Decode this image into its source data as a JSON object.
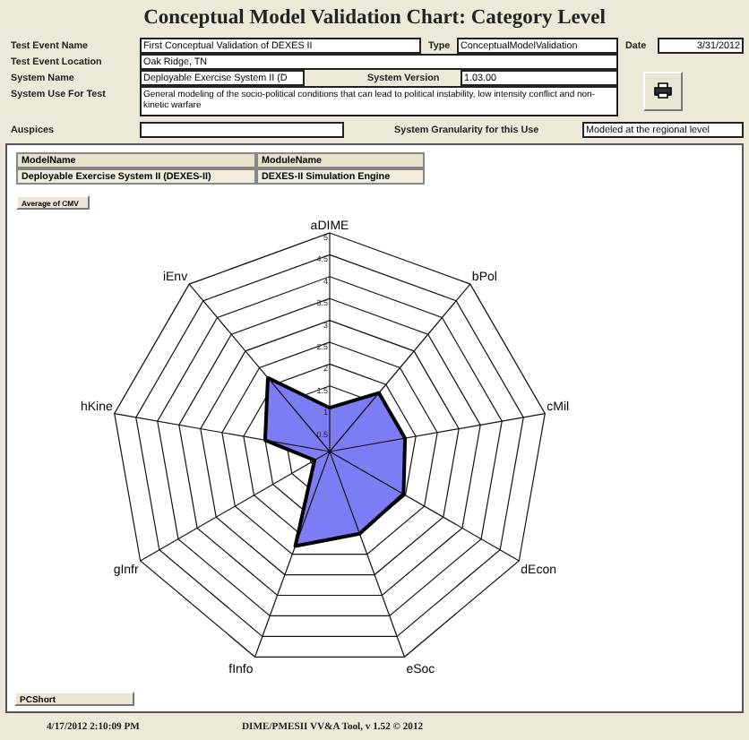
{
  "chart_data": {
    "type": "radar",
    "title": "Conceptual Model Validation Chart: Category Level",
    "categories": [
      "aDIME",
      "bPol",
      "cMil",
      "dEcon",
      "eSoc",
      "fInfo",
      "gInfr",
      "hKine",
      "iEnv"
    ],
    "series": [
      {
        "color": "#7c7cf4",
        "values": [
          1.0,
          1.75,
          1.75,
          1.95,
          2.0,
          2.3,
          0.4,
          1.5,
          2.2
        ]
      }
    ],
    "ylim": [
      0,
      5
    ],
    "yticks": [
      0.5,
      1,
      1.5,
      2,
      2.5,
      3,
      3.5,
      4,
      4.5,
      5
    ],
    "grid": true,
    "annotations": [
      "Test Event Name",
      "First Conceptual Validation of DEXES II",
      "Type",
      "ConceptualModelValidation",
      "Date",
      "3/31/2012",
      "Test Event Location",
      "Oak Ridge, TN",
      "System Name",
      "Deployable Exercise System II (D",
      "System Version",
      "1.03.00",
      "System Use For Test",
      "General modeling of the socio-political conditions that can lead to political instability, low intensity conflict and non-kinetic warfare",
      "Auspices",
      "System Granularity for this Use",
      "Modeled at the regional level",
      "ModelName",
      "ModuleName",
      "Deployable Exercise System II (DEXES-II)",
      "DEXES-II Simulation Engine",
      "Average of CMV",
      "PCShort",
      "4/17/2012 2:10:09 PM",
      "DIME/PMESII VV&A Tool, v 1.52 © 2012"
    ]
  }
}
